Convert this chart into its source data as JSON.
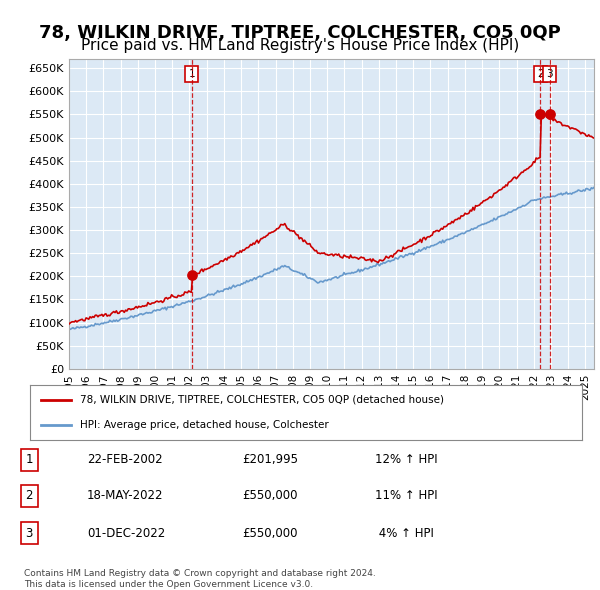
{
  "title": "78, WILKIN DRIVE, TIPTREE, COLCHESTER, CO5 0QP",
  "subtitle": "Price paid vs. HM Land Registry's House Price Index (HPI)",
  "title_fontsize": 13,
  "subtitle_fontsize": 11,
  "xlim_year_start": 1995,
  "xlim_year_end": 2025.5,
  "ylim": [
    0,
    670000
  ],
  "yticks": [
    0,
    50000,
    100000,
    150000,
    200000,
    250000,
    300000,
    350000,
    400000,
    450000,
    500000,
    550000,
    600000,
    650000
  ],
  "ytick_labels": [
    "£0",
    "£50K",
    "£100K",
    "£150K",
    "£200K",
    "£250K",
    "£300K",
    "£350K",
    "£400K",
    "£450K",
    "£500K",
    "£550K",
    "£600K",
    "£650K"
  ],
  "property_color": "#cc0000",
  "hpi_color": "#6699cc",
  "background_color": "#dce9f5",
  "sale_years_float": [
    2002.142,
    2022.378,
    2022.919
  ],
  "sale_prices": [
    201995,
    550000,
    550000
  ],
  "sale_labels": [
    "1",
    "2",
    "3"
  ],
  "legend_property": "78, WILKIN DRIVE, TIPTREE, COLCHESTER, CO5 0QP (detached house)",
  "legend_hpi": "HPI: Average price, detached house, Colchester",
  "table_rows": [
    [
      "1",
      "22-FEB-2002",
      "£201,995",
      "12% ↑ HPI"
    ],
    [
      "2",
      "18-MAY-2022",
      "£550,000",
      "11% ↑ HPI"
    ],
    [
      "3",
      "01-DEC-2022",
      "£550,000",
      " 4% ↑ HPI"
    ]
  ],
  "footnote": "Contains HM Land Registry data © Crown copyright and database right 2024.\nThis data is licensed under the Open Government Licence v3.0.",
  "xtick_years": [
    1995,
    1996,
    1997,
    1998,
    1999,
    2000,
    2001,
    2002,
    2003,
    2004,
    2005,
    2006,
    2007,
    2008,
    2009,
    2010,
    2011,
    2012,
    2013,
    2014,
    2015,
    2016,
    2017,
    2018,
    2019,
    2020,
    2021,
    2022,
    2023,
    2024,
    2025
  ]
}
